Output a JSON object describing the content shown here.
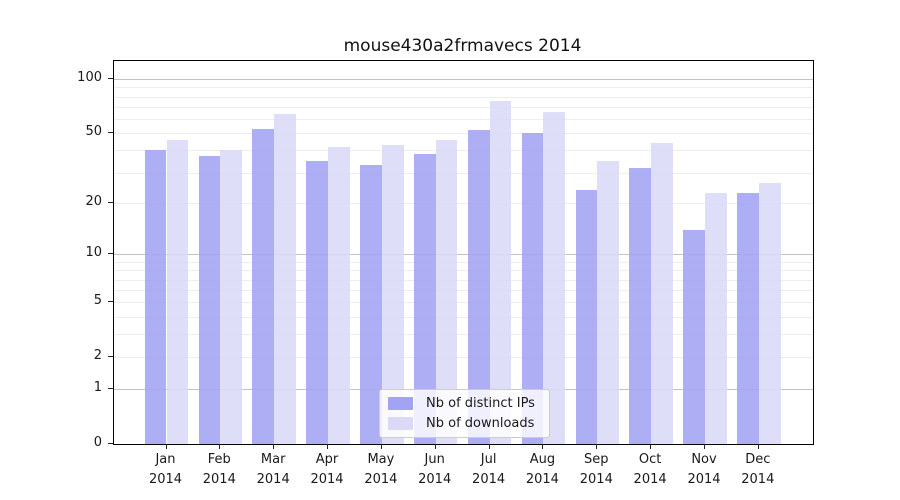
{
  "title": "mouse430a2frmavecs 2014",
  "chart_data": {
    "type": "bar",
    "title": "mouse430a2frmavecs 2014",
    "categories": [
      "Jan\n2014",
      "Feb\n2014",
      "Mar\n2014",
      "Apr\n2014",
      "May\n2014",
      "Jun\n2014",
      "Jul\n2014",
      "Aug\n2014",
      "Sep\n2014",
      "Oct\n2014",
      "Nov\n2014",
      "Dec\n2014"
    ],
    "series": [
      {
        "name": "Nb of distinct IPs",
        "color": "#a3a3f3",
        "values": [
          40,
          37,
          53,
          35,
          33,
          38,
          52,
          50,
          24,
          32,
          14,
          23
        ]
      },
      {
        "name": "Nb of downloads",
        "color": "#dadaf8",
        "values": [
          46,
          40,
          64,
          42,
          43,
          46,
          76,
          66,
          35,
          44,
          23,
          26
        ]
      }
    ],
    "xlabel": "",
    "ylabel": "",
    "yscale": "log1p",
    "ylim": [
      0,
      126
    ],
    "yticks": [
      0,
      1,
      2,
      5,
      10,
      20,
      50,
      100
    ],
    "grid": true,
    "legend_position": "lower center"
  },
  "colors": {
    "bar_dark": "#a3a3f3",
    "bar_light": "#dadaf8",
    "grid_major": "#c3c3c3",
    "grid_minor": "#ededed",
    "spine": "#000000",
    "text": "#1a1a1a"
  }
}
